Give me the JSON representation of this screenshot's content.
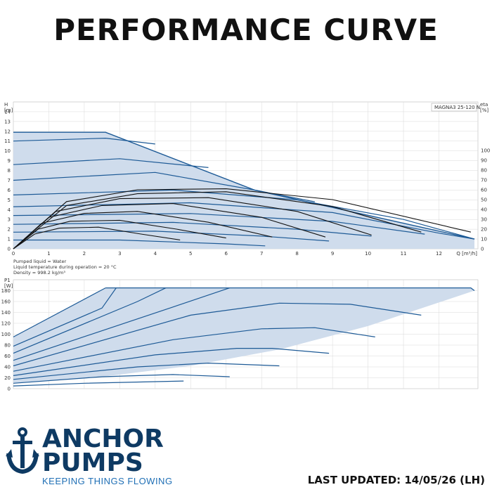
{
  "title": "PERFORMANCE CURVE",
  "brand": {
    "word1": "ANCHOR",
    "word2": "PUMPS",
    "tagline": "KEEPING THINGS FLOWING",
    "color": "#0e3a63",
    "accent": "#1f6fb5",
    "icon": "anchor-icon"
  },
  "last_updated": "LAST UPDATED: 14/05/26 (LH)",
  "notes": [
    "Pumped liquid = Water",
    "Liquid temperature during operation = 20 °C",
    "Density = 998.2 kg/m³"
  ],
  "chart_data": [
    {
      "type": "line",
      "legend_box": "MAGNA3 25-120 N",
      "ylabel_top": "H",
      "ylabel_unit": "[m]",
      "y2label_top": "eta",
      "y2label_unit": "[%]",
      "xlabel": "Q [m³/h]",
      "xlim": [
        0,
        13.1
      ],
      "ylim": [
        0,
        15
      ],
      "y2lim": [
        0,
        100
      ],
      "x_ticks": [
        0,
        1,
        2,
        3,
        4,
        5,
        6,
        7,
        8,
        9,
        10,
        11,
        12
      ],
      "y_ticks": [
        0,
        1,
        2,
        3,
        4,
        5,
        6,
        7,
        8,
        9,
        10,
        11,
        12,
        13,
        14
      ],
      "y2_ticks": [
        0,
        10,
        20,
        30,
        40,
        50,
        60,
        70,
        80,
        90,
        100
      ],
      "envelope": [
        [
          0,
          11.9
        ],
        [
          2.6,
          11.9
        ],
        [
          6.8,
          6.0
        ],
        [
          13.0,
          1.0
        ],
        [
          13.0,
          0
        ],
        [
          0,
          0
        ]
      ],
      "head_curves": [
        {
          "name": "h1",
          "points": [
            [
              0,
              11.0
            ],
            [
              2.6,
              11.3
            ],
            [
              4.0,
              10.7
            ]
          ]
        },
        {
          "name": "h2",
          "points": [
            [
              0,
              8.6
            ],
            [
              3.0,
              9.2
            ],
            [
              5.5,
              8.3
            ]
          ]
        },
        {
          "name": "h3",
          "points": [
            [
              0,
              7.0
            ],
            [
              4.0,
              7.8
            ],
            [
              6.8,
              6.0
            ],
            [
              8.5,
              4.8
            ]
          ]
        },
        {
          "name": "h4",
          "points": [
            [
              0,
              5.5
            ],
            [
              4.5,
              6.0
            ],
            [
              8.0,
              5.0
            ],
            [
              11.0,
              3.0
            ],
            [
              13.0,
              1.0
            ]
          ]
        },
        {
          "name": "h5",
          "points": [
            [
              0,
              4.3
            ],
            [
              5.0,
              4.7
            ],
            [
              9.0,
              3.7
            ],
            [
              12.0,
              1.6
            ],
            [
              13.0,
              1.0
            ]
          ]
        },
        {
          "name": "h6",
          "points": [
            [
              0,
              3.4
            ],
            [
              5.0,
              3.6
            ],
            [
              9.0,
              2.8
            ],
            [
              11.6,
              1.5
            ]
          ]
        },
        {
          "name": "h7",
          "points": [
            [
              0,
              2.5
            ],
            [
              4.5,
              2.7
            ],
            [
              8.0,
              2.0
            ],
            [
              10.1,
              1.3
            ]
          ]
        },
        {
          "name": "h8",
          "points": [
            [
              0,
              1.7
            ],
            [
              4.0,
              1.8
            ],
            [
              7.0,
              1.3
            ],
            [
              8.9,
              0.8
            ]
          ]
        },
        {
          "name": "h9",
          "points": [
            [
              0,
              0.9
            ],
            [
              3.0,
              0.9
            ],
            [
              6.0,
              0.5
            ],
            [
              7.1,
              0.3
            ]
          ]
        }
      ],
      "eta_curves": [
        {
          "name": "e1",
          "points": [
            [
              0,
              0
            ],
            [
              1.5,
              48
            ],
            [
              3.5,
              60
            ],
            [
              6.0,
              61
            ],
            [
              9.0,
              50
            ],
            [
              12.9,
              17
            ]
          ]
        },
        {
          "name": "e2",
          "points": [
            [
              0,
              0
            ],
            [
              1.5,
              44
            ],
            [
              3.5,
              56
            ],
            [
              6.0,
              58
            ],
            [
              9.0,
              43
            ],
            [
              11.5,
              17
            ]
          ]
        },
        {
          "name": "e3",
          "points": [
            [
              0,
              0
            ],
            [
              1.2,
              38
            ],
            [
              3.0,
              51
            ],
            [
              5.5,
              52
            ],
            [
              8.0,
              38
            ],
            [
              10.1,
              14
            ]
          ]
        },
        {
          "name": "e4",
          "points": [
            [
              0,
              0
            ],
            [
              1.0,
              32
            ],
            [
              2.5,
              44
            ],
            [
              4.5,
              46
            ],
            [
              7.0,
              32
            ],
            [
              8.8,
              12
            ]
          ]
        },
        {
          "name": "e5",
          "points": [
            [
              0,
              0
            ],
            [
              0.8,
              26
            ],
            [
              2.0,
              36
            ],
            [
              3.5,
              38
            ],
            [
              5.5,
              27
            ],
            [
              7.3,
              12
            ]
          ]
        },
        {
          "name": "e6",
          "points": [
            [
              0,
              0
            ],
            [
              0.7,
              20
            ],
            [
              1.6,
              28
            ],
            [
              3.0,
              29
            ],
            [
              4.6,
              20
            ],
            [
              6.0,
              11
            ]
          ]
        },
        {
          "name": "e7",
          "points": [
            [
              0,
              0
            ],
            [
              0.6,
              15
            ],
            [
              1.3,
              21
            ],
            [
              2.4,
              22
            ],
            [
              3.6,
              15
            ],
            [
              4.7,
              9
            ]
          ]
        }
      ]
    },
    {
      "type": "line",
      "ylabel_top": "P1",
      "ylabel_unit": "[W]",
      "xlim": [
        0,
        13.1
      ],
      "ylim": [
        0,
        200
      ],
      "y_ticks": [
        0,
        20,
        40,
        60,
        80,
        100,
        120,
        140,
        160,
        180
      ],
      "envelope": [
        [
          0,
          95
        ],
        [
          2.6,
          185
        ],
        [
          12.9,
          185
        ],
        [
          13.0,
          180
        ],
        [
          10.0,
          115
        ],
        [
          7.5,
          72
        ],
        [
          5.0,
          42
        ],
        [
          2.5,
          22
        ],
        [
          0,
          10
        ]
      ],
      "power_curves": [
        {
          "name": "p1",
          "points": [
            [
              0,
              95
            ],
            [
              2.6,
              185
            ]
          ]
        },
        {
          "name": "p2",
          "points": [
            [
              0,
              78
            ],
            [
              2.5,
              148
            ],
            [
              2.9,
              185
            ]
          ]
        },
        {
          "name": "p3",
          "points": [
            [
              0,
              65
            ],
            [
              3.5,
              160
            ],
            [
              4.3,
              185
            ]
          ]
        },
        {
          "name": "p4",
          "points": [
            [
              0,
              52
            ],
            [
              4.5,
              150
            ],
            [
              6.1,
              185
            ]
          ]
        },
        {
          "name": "p5",
          "points": [
            [
              0,
              42
            ],
            [
              5.0,
              135
            ],
            [
              7.5,
              157
            ],
            [
              9.5,
              155
            ],
            [
              11.5,
              135
            ]
          ]
        },
        {
          "name": "p6",
          "points": [
            [
              0,
              32
            ],
            [
              4.5,
              90
            ],
            [
              7.0,
              110
            ],
            [
              8.5,
              112
            ],
            [
              10.2,
              95
            ]
          ]
        },
        {
          "name": "p7",
          "points": [
            [
              0,
              24
            ],
            [
              4.0,
              62
            ],
            [
              6.3,
              74
            ],
            [
              7.3,
              74
            ],
            [
              8.9,
              65
            ]
          ]
        },
        {
          "name": "p8",
          "points": [
            [
              0,
              17
            ],
            [
              3.5,
              40
            ],
            [
              5.5,
              47
            ],
            [
              7.5,
              42
            ]
          ]
        },
        {
          "name": "p9",
          "points": [
            [
              0,
              10
            ],
            [
              2.5,
              22
            ],
            [
              4.5,
              26
            ],
            [
              6.1,
              22
            ]
          ]
        },
        {
          "name": "p10",
          "points": [
            [
              0,
              5
            ],
            [
              2.0,
              10
            ],
            [
              4.8,
              14
            ]
          ]
        },
        {
          "name": "pmax",
          "points": [
            [
              2.6,
              185
            ],
            [
              12.9,
              185
            ],
            [
              13.0,
              180
            ]
          ]
        }
      ]
    }
  ],
  "colors": {
    "fill": "#cfdcec",
    "curve": "#1d5a96",
    "eta": "#111111",
    "grid": "#d9d9d9"
  }
}
